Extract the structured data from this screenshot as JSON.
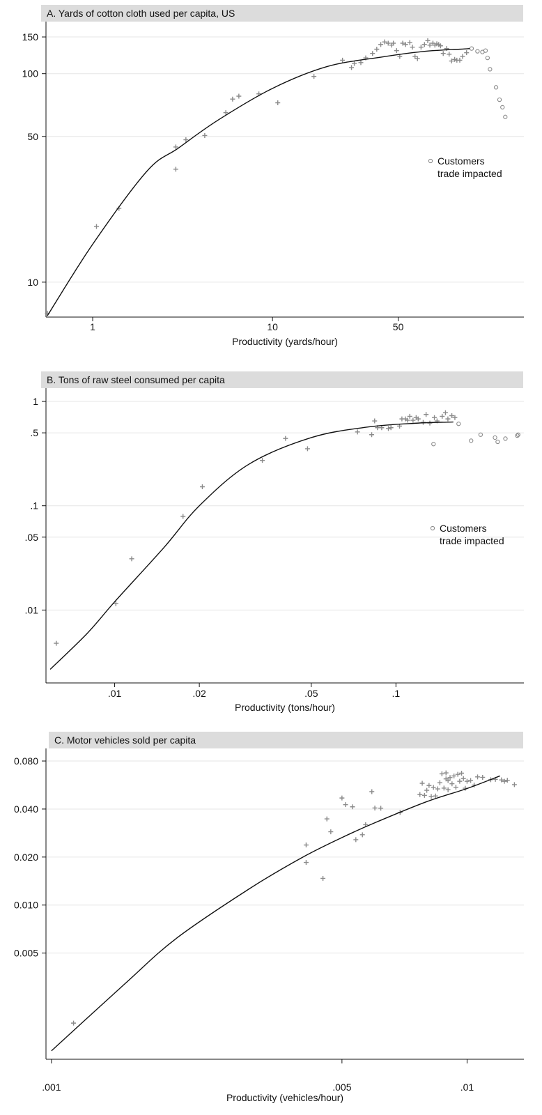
{
  "chart_data": [
    {
      "type": "scatter",
      "title": "A. Yards of cotton cloth used per capita, US",
      "xlabel": "Productivity (yards/hour)",
      "ylabel": "",
      "x_scale": "log",
      "y_scale": "log",
      "xlim": [
        0.55,
        250
      ],
      "ylim": [
        6.8,
        175
      ],
      "x_ticks": [
        {
          "value": 1,
          "label": "1"
        },
        {
          "value": 10,
          "label": "10"
        },
        {
          "value": 50,
          "label": "50"
        }
      ],
      "y_ticks": [
        {
          "value": 10,
          "label": "10"
        },
        {
          "value": 50,
          "label": "50"
        },
        {
          "value": 100,
          "label": "100"
        },
        {
          "value": 150,
          "label": "150"
        }
      ],
      "grid": true,
      "colors": {
        "points": "#8a8a8a",
        "fit": "#111111",
        "title_bg": "#dcdcdc"
      },
      "legend": {
        "label_lines": [
          "Customers",
          "trade impacted"
        ],
        "marker": "circle",
        "placement": "right-middle"
      },
      "series": [
        {
          "marker": "plus",
          "points": [
            [
              0.56,
              7.1
            ],
            [
              1.05,
              18.5
            ],
            [
              1.4,
              22.6
            ],
            [
              2.9,
              44.5
            ],
            [
              2.9,
              34.8
            ],
            [
              3.3,
              48.2
            ],
            [
              4.2,
              50.5
            ],
            [
              5.5,
              65
            ],
            [
              6.0,
              75.5
            ],
            [
              6.5,
              78
            ],
            [
              8.4,
              80
            ],
            [
              10.7,
              72.5
            ],
            [
              17,
              97
            ],
            [
              24.5,
              116
            ],
            [
              27.5,
              107
            ],
            [
              28.5,
              112
            ],
            [
              31,
              113
            ],
            [
              33,
              119
            ],
            [
              36,
              125
            ],
            [
              38,
              131
            ],
            [
              40,
              138
            ],
            [
              42,
              142
            ],
            [
              44,
              140
            ],
            [
              46,
              137
            ],
            [
              47,
              140
            ],
            [
              49,
              129
            ],
            [
              51,
              121
            ],
            [
              53,
              140
            ],
            [
              55,
              138
            ],
            [
              58,
              141
            ],
            [
              60,
              134
            ],
            [
              62,
              121
            ],
            [
              64,
              118
            ],
            [
              67,
              134
            ],
            [
              70,
              138
            ],
            [
              73,
              144
            ],
            [
              75,
              137
            ],
            [
              78,
              140
            ],
            [
              80,
              137
            ],
            [
              82,
              139
            ],
            [
              84,
              138
            ],
            [
              86,
              136
            ],
            [
              89,
              125
            ],
            [
              93,
              132
            ],
            [
              96,
              124
            ],
            [
              99,
              115
            ],
            [
              103,
              117
            ],
            [
              106,
              116
            ],
            [
              110,
              116
            ],
            [
              114,
              121
            ],
            [
              120,
              126
            ]
          ]
        },
        {
          "marker": "circle",
          "points": [
            [
              128,
              132
            ],
            [
              138,
              128
            ],
            [
              147,
              127
            ],
            [
              153,
              129
            ],
            [
              157,
              119
            ],
            [
              162,
              105
            ],
            [
              175,
              86
            ],
            [
              183,
              75
            ],
            [
              190,
              69
            ],
            [
              197,
              62
            ]
          ]
        }
      ],
      "fit_line": [
        [
          0.56,
          6.9
        ],
        [
          1,
          15.2
        ],
        [
          2,
          34
        ],
        [
          3,
          44
        ],
        [
          5,
          60
        ],
        [
          10,
          85
        ],
        [
          20,
          108
        ],
        [
          40,
          120
        ],
        [
          70,
          128
        ],
        [
          110,
          131
        ],
        [
          125,
          132
        ]
      ]
    },
    {
      "type": "scatter",
      "title": "B. Tons of raw steel consumed per capita",
      "xlabel": "Productivity (tons/hour)",
      "ylabel": "",
      "x_scale": "log",
      "y_scale": "log",
      "xlim": [
        0.0057,
        0.285
      ],
      "ylim": [
        0.002,
        1.3
      ],
      "x_ticks": [
        {
          "value": 0.01,
          "label": ".01"
        },
        {
          "value": 0.02,
          "label": ".02"
        },
        {
          "value": 0.05,
          "label": ".05"
        },
        {
          "value": 0.1,
          "label": ".1"
        }
      ],
      "y_ticks": [
        {
          "value": 0.01,
          "label": ".01"
        },
        {
          "value": 0.05,
          "label": ".05"
        },
        {
          "value": 0.1,
          "label": ".1"
        },
        {
          "value": 0.5,
          "label": ".5"
        },
        {
          "value": 1,
          "label": "1"
        }
      ],
      "grid": true,
      "colors": {
        "points": "#8a8a8a",
        "fit": "#111111",
        "title_bg": "#dcdcdc"
      },
      "legend": {
        "label_lines": [
          "Customers",
          "trade impacted"
        ],
        "marker": "circle",
        "placement": "right-middle"
      },
      "series": [
        {
          "marker": "plus",
          "points": [
            [
              0.0062,
              0.0048
            ],
            [
              0.0101,
              0.0115
            ],
            [
              0.0115,
              0.031
            ],
            [
              0.0175,
              0.079
            ],
            [
              0.0205,
              0.152
            ],
            [
              0.0335,
              0.272
            ],
            [
              0.0405,
              0.442
            ],
            [
              0.0485,
              0.352
            ],
            [
              0.073,
              0.51
            ],
            [
              0.082,
              0.48
            ],
            [
              0.084,
              0.65
            ],
            [
              0.086,
              0.56
            ],
            [
              0.089,
              0.56
            ],
            [
              0.094,
              0.55
            ],
            [
              0.096,
              0.56
            ],
            [
              0.103,
              0.58
            ],
            [
              0.105,
              0.68
            ],
            [
              0.108,
              0.68
            ],
            [
              0.11,
              0.66
            ],
            [
              0.112,
              0.72
            ],
            [
              0.115,
              0.66
            ],
            [
              0.118,
              0.7
            ],
            [
              0.12,
              0.68
            ],
            [
              0.125,
              0.63
            ],
            [
              0.128,
              0.75
            ],
            [
              0.132,
              0.62
            ],
            [
              0.137,
              0.7
            ],
            [
              0.14,
              0.65
            ],
            [
              0.146,
              0.72
            ],
            [
              0.15,
              0.78
            ],
            [
              0.153,
              0.68
            ],
            [
              0.158,
              0.73
            ],
            [
              0.162,
              0.7
            ]
          ]
        },
        {
          "marker": "circle",
          "points": [
            [
              0.136,
              0.39
            ],
            [
              0.167,
              0.61
            ],
            [
              0.185,
              0.42
            ],
            [
              0.2,
              0.48
            ],
            [
              0.225,
              0.45
            ],
            [
              0.23,
              0.41
            ],
            [
              0.245,
              0.44
            ],
            [
              0.27,
              0.47
            ],
            [
              0.272,
              0.48
            ]
          ]
        }
      ],
      "fit_line": [
        [
          0.0059,
          0.0027
        ],
        [
          0.008,
          0.006
        ],
        [
          0.01,
          0.012
        ],
        [
          0.015,
          0.04
        ],
        [
          0.02,
          0.1
        ],
        [
          0.03,
          0.25
        ],
        [
          0.05,
          0.45
        ],
        [
          0.08,
          0.57
        ],
        [
          0.12,
          0.62
        ],
        [
          0.16,
          0.635
        ]
      ]
    },
    {
      "type": "scatter",
      "title": "C. Motor vehicles sold per capita",
      "xlabel": "Productivity (vehicles/hour)",
      "ylabel": "",
      "x_scale": "log",
      "y_scale": "log",
      "xlim": [
        0.00097,
        0.0137
      ],
      "ylim": [
        0.00108,
        0.094
      ],
      "x_ticks": [
        {
          "value": 0.001,
          "label": ".001"
        },
        {
          "value": 0.005,
          "label": ".005"
        },
        {
          "value": 0.01,
          "label": ".01"
        }
      ],
      "y_ticks": [
        {
          "value": 0.005,
          "label": "0.005"
        },
        {
          "value": 0.01,
          "label": "0.010"
        },
        {
          "value": 0.02,
          "label": "0.020"
        },
        {
          "value": 0.04,
          "label": "0.040"
        },
        {
          "value": 0.08,
          "label": "0.080"
        }
      ],
      "grid": true,
      "colors": {
        "points": "#8a8a8a",
        "fit": "#111111",
        "title_bg": "#dcdcdc"
      },
      "series": [
        {
          "marker": "plus",
          "points": [
            [
              0.00113,
              0.00182
            ],
            [
              0.0041,
              0.0238
            ],
            [
              0.0041,
              0.0185
            ],
            [
              0.0045,
              0.0147
            ],
            [
              0.0046,
              0.0347
            ],
            [
              0.0047,
              0.0288
            ],
            [
              0.005,
              0.0469
            ],
            [
              0.0051,
              0.0426
            ],
            [
              0.0053,
              0.0413
            ],
            [
              0.0054,
              0.0257
            ],
            [
              0.0056,
              0.0276
            ],
            [
              0.0057,
              0.0319
            ],
            [
              0.0059,
              0.0514
            ],
            [
              0.006,
              0.0406
            ],
            [
              0.0062,
              0.0405
            ],
            [
              0.0069,
              0.0381
            ],
            [
              0.0077,
              0.0493
            ],
            [
              0.0078,
              0.058
            ],
            [
              0.0079,
              0.0487
            ],
            [
              0.008,
              0.0524
            ],
            [
              0.0081,
              0.0562
            ],
            [
              0.0082,
              0.048
            ],
            [
              0.0083,
              0.0547
            ],
            [
              0.0084,
              0.0483
            ],
            [
              0.0085,
              0.0535
            ],
            [
              0.0086,
              0.0585
            ],
            [
              0.0087,
              0.0665
            ],
            [
              0.0088,
              0.0541
            ],
            [
              0.0089,
              0.0618
            ],
            [
              0.0089,
              0.0674
            ],
            [
              0.009,
              0.0604
            ],
            [
              0.009,
              0.0528
            ],
            [
              0.0091,
              0.063
            ],
            [
              0.0092,
              0.0576
            ],
            [
              0.0093,
              0.0645
            ],
            [
              0.0094,
              0.0548
            ],
            [
              0.0095,
              0.066
            ],
            [
              0.0096,
              0.0597
            ],
            [
              0.0097,
              0.0671
            ],
            [
              0.0098,
              0.0621
            ],
            [
              0.0099,
              0.054
            ],
            [
              0.01,
              0.0597
            ],
            [
              0.0102,
              0.0604
            ],
            [
              0.0104,
              0.0565
            ],
            [
              0.0106,
              0.0636
            ],
            [
              0.0109,
              0.0632
            ],
            [
              0.0114,
              0.0611
            ],
            [
              0.0117,
              0.0614
            ],
            [
              0.0121,
              0.0609
            ],
            [
              0.0123,
              0.0597
            ],
            [
              0.0125,
              0.0606
            ],
            [
              0.013,
              0.0569
            ]
          ]
        }
      ],
      "fit_line": [
        [
          0.001,
          0.00122
        ],
        [
          0.0015,
          0.0032
        ],
        [
          0.002,
          0.0062
        ],
        [
          0.003,
          0.0127
        ],
        [
          0.004,
          0.0198
        ],
        [
          0.005,
          0.0265
        ],
        [
          0.006,
          0.0328
        ],
        [
          0.008,
          0.0445
        ],
        [
          0.01,
          0.0538
        ],
        [
          0.012,
          0.0645
        ]
      ]
    }
  ]
}
